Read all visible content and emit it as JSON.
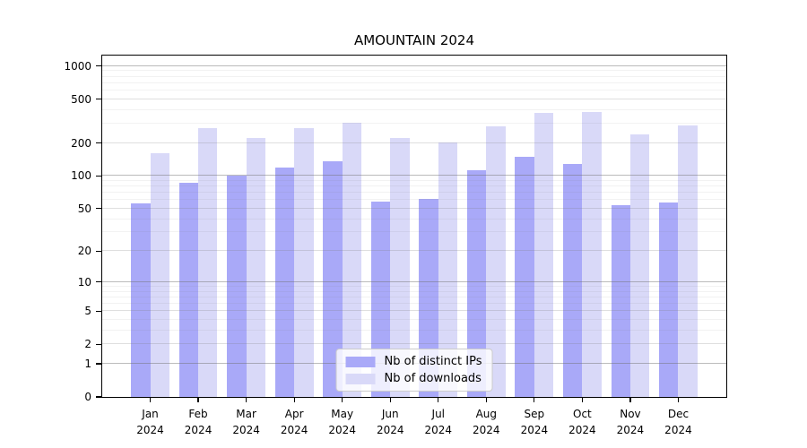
{
  "title": "AMOUNTAIN 2024",
  "colors": {
    "distinct_ips": "#a9a9f8",
    "downloads": "#d9d9f8",
    "axis": "#000000",
    "legend_border": "#cccccc"
  },
  "chart_data": {
    "type": "bar",
    "title": "AMOUNTAIN 2024",
    "categories": [
      "Jan 2024",
      "Feb 2024",
      "Mar 2024",
      "Apr 2024",
      "May 2024",
      "Jun 2024",
      "Jul 2024",
      "Aug 2024",
      "Sep 2024",
      "Oct 2024",
      "Nov 2024",
      "Dec 2024"
    ],
    "series": [
      {
        "name": "Nb of distinct IPs",
        "color_key": "distinct_ips",
        "values": [
          56,
          87,
          100,
          120,
          137,
          58,
          61,
          113,
          150,
          128,
          54,
          57
        ]
      },
      {
        "name": "Nb of downloads",
        "color_key": "downloads",
        "values": [
          160,
          275,
          222,
          273,
          303,
          220,
          201,
          281,
          373,
          382,
          240,
          288
        ]
      }
    ],
    "xlabel": "",
    "ylabel": "",
    "yscale": "log1p",
    "ylim": [
      0,
      1245
    ],
    "yticks": [
      0,
      1,
      2,
      5,
      10,
      20,
      50,
      100,
      200,
      500,
      1000
    ],
    "yticks_minor": [
      3,
      4,
      6,
      7,
      8,
      9,
      30,
      40,
      60,
      70,
      80,
      90,
      300,
      400,
      600,
      700,
      800,
      900
    ],
    "grid": true,
    "legend_position": "lower center"
  }
}
